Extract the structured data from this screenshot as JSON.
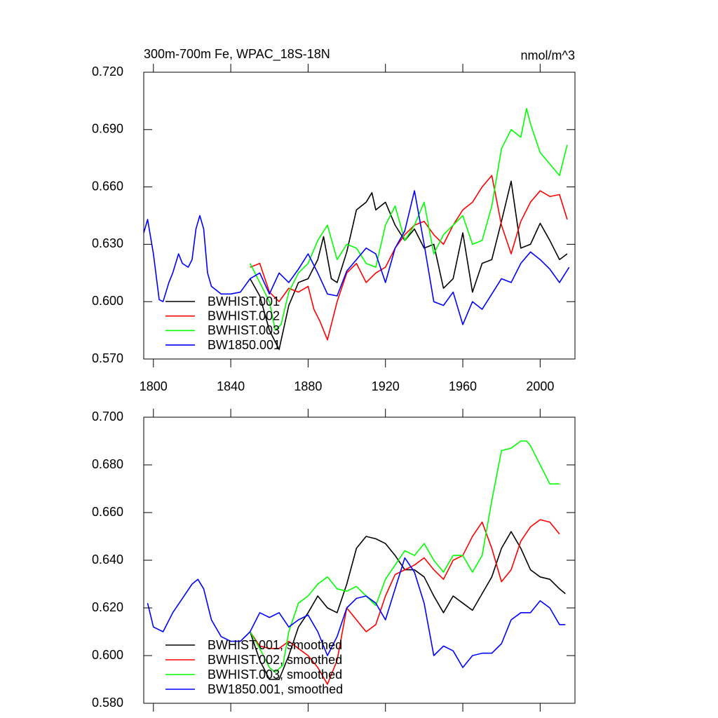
{
  "chart_data": [
    {
      "type": "line",
      "title": "300m-700m Fe, WPAC_18S-18N",
      "units": "nmol/m^3",
      "xlim": [
        1795,
        2018
      ],
      "xticks": [
        1800,
        1840,
        1880,
        1920,
        1960,
        2000
      ],
      "ylim": [
        0.57,
        0.72
      ],
      "yticks": [
        {
          "value": 0.57,
          "label": "0.570"
        },
        {
          "value": 0.6,
          "label": "0.600"
        },
        {
          "value": 0.63,
          "label": "0.630"
        },
        {
          "value": 0.66,
          "label": "0.660"
        },
        {
          "value": 0.69,
          "label": "0.690"
        },
        {
          "value": 0.72,
          "label": "0.720"
        }
      ],
      "legend": "lower left",
      "series": [
        {
          "name": "BWHIST.001",
          "color": "#000000",
          "x": [
            1850,
            1855,
            1860,
            1865,
            1870,
            1875,
            1880,
            1885,
            1888,
            1892,
            1895,
            1900,
            1905,
            1910,
            1913,
            1915,
            1920,
            1925,
            1930,
            1935,
            1940,
            1945,
            1950,
            1955,
            1960,
            1965,
            1970,
            1975,
            1980,
            1985,
            1990,
            1995,
            2000,
            2005,
            2010,
            2014
          ],
          "values": [
            0.612,
            0.603,
            0.585,
            0.575,
            0.598,
            0.61,
            0.612,
            0.622,
            0.634,
            0.612,
            0.61,
            0.626,
            0.648,
            0.652,
            0.657,
            0.648,
            0.652,
            0.64,
            0.632,
            0.638,
            0.628,
            0.63,
            0.607,
            0.612,
            0.636,
            0.605,
            0.62,
            0.622,
            0.642,
            0.663,
            0.628,
            0.63,
            0.641,
            0.632,
            0.622,
            0.625
          ]
        },
        {
          "name": "BWHIST.002",
          "color": "#ff0000",
          "x": [
            1850,
            1855,
            1860,
            1865,
            1870,
            1875,
            1880,
            1883,
            1886,
            1890,
            1895,
            1900,
            1905,
            1910,
            1915,
            1920,
            1925,
            1930,
            1935,
            1940,
            1945,
            1950,
            1955,
            1960,
            1965,
            1970,
            1975,
            1980,
            1985,
            1990,
            1995,
            2000,
            2005,
            2010,
            2014
          ],
          "values": [
            0.618,
            0.62,
            0.605,
            0.6,
            0.607,
            0.605,
            0.608,
            0.596,
            0.59,
            0.58,
            0.6,
            0.615,
            0.62,
            0.61,
            0.615,
            0.618,
            0.628,
            0.635,
            0.64,
            0.642,
            0.635,
            0.63,
            0.64,
            0.648,
            0.652,
            0.66,
            0.666,
            0.64,
            0.625,
            0.642,
            0.652,
            0.658,
            0.655,
            0.656,
            0.643
          ]
        },
        {
          "name": "BWHIST.003",
          "color": "#00ff00",
          "x": [
            1850,
            1855,
            1860,
            1863,
            1866,
            1870,
            1875,
            1880,
            1885,
            1890,
            1895,
            1900,
            1905,
            1910,
            1915,
            1920,
            1925,
            1930,
            1935,
            1940,
            1945,
            1950,
            1955,
            1960,
            1965,
            1970,
            1975,
            1980,
            1985,
            1990,
            1993,
            1995,
            2000,
            2005,
            2010,
            2014
          ],
          "values": [
            0.62,
            0.61,
            0.6,
            0.585,
            0.588,
            0.605,
            0.615,
            0.62,
            0.632,
            0.64,
            0.622,
            0.63,
            0.628,
            0.62,
            0.618,
            0.64,
            0.65,
            0.632,
            0.64,
            0.652,
            0.625,
            0.635,
            0.64,
            0.645,
            0.63,
            0.632,
            0.65,
            0.68,
            0.69,
            0.686,
            0.701,
            0.693,
            0.678,
            0.672,
            0.666,
            0.682
          ]
        },
        {
          "name": "BW1850.001",
          "color": "#0000ff",
          "x": [
            1795,
            1797,
            1800,
            1803,
            1805,
            1808,
            1810,
            1813,
            1815,
            1818,
            1820,
            1822,
            1824,
            1826,
            1828,
            1830,
            1835,
            1840,
            1845,
            1850,
            1855,
            1860,
            1865,
            1870,
            1875,
            1880,
            1885,
            1890,
            1895,
            1900,
            1905,
            1910,
            1915,
            1920,
            1925,
            1930,
            1935,
            1940,
            1945,
            1950,
            1955,
            1960,
            1965,
            1970,
            1975,
            1980,
            1985,
            1990,
            1995,
            2000,
            2005,
            2010,
            2015
          ],
          "values": [
            0.636,
            0.643,
            0.625,
            0.601,
            0.6,
            0.61,
            0.615,
            0.625,
            0.62,
            0.618,
            0.622,
            0.638,
            0.645,
            0.638,
            0.615,
            0.608,
            0.604,
            0.604,
            0.605,
            0.612,
            0.615,
            0.604,
            0.615,
            0.61,
            0.617,
            0.625,
            0.615,
            0.604,
            0.603,
            0.616,
            0.622,
            0.628,
            0.625,
            0.61,
            0.628,
            0.637,
            0.658,
            0.63,
            0.6,
            0.598,
            0.605,
            0.588,
            0.6,
            0.596,
            0.604,
            0.612,
            0.61,
            0.62,
            0.626,
            0.622,
            0.617,
            0.61,
            0.618
          ]
        }
      ]
    },
    {
      "type": "line",
      "xlim": [
        1795,
        2018
      ],
      "xticks": [
        1800,
        1840,
        1880,
        1920,
        1960,
        2000
      ],
      "ylim": [
        0.58,
        0.7
      ],
      "yticks": [
        {
          "value": 0.58,
          "label": "0.580"
        },
        {
          "value": 0.6,
          "label": "0.600"
        },
        {
          "value": 0.62,
          "label": "0.620"
        },
        {
          "value": 0.64,
          "label": "0.640"
        },
        {
          "value": 0.66,
          "label": "0.660"
        },
        {
          "value": 0.68,
          "label": "0.680"
        },
        {
          "value": 0.7,
          "label": "0.700"
        }
      ],
      "legend": "lower left",
      "series": [
        {
          "name": "BWHIST.001, smoothed",
          "color": "#000000",
          "x": [
            1850,
            1855,
            1860,
            1865,
            1870,
            1875,
            1880,
            1885,
            1890,
            1895,
            1900,
            1905,
            1910,
            1915,
            1920,
            1925,
            1930,
            1935,
            1940,
            1945,
            1950,
            1955,
            1960,
            1965,
            1970,
            1975,
            1980,
            1985,
            1990,
            1995,
            2000,
            2005,
            2010,
            2013
          ],
          "values": [
            0.61,
            0.598,
            0.59,
            0.59,
            0.6,
            0.612,
            0.618,
            0.625,
            0.62,
            0.618,
            0.63,
            0.645,
            0.65,
            0.649,
            0.647,
            0.642,
            0.636,
            0.636,
            0.633,
            0.625,
            0.618,
            0.625,
            0.622,
            0.619,
            0.626,
            0.633,
            0.645,
            0.652,
            0.645,
            0.636,
            0.633,
            0.632,
            0.628,
            0.626
          ]
        },
        {
          "name": "BWHIST.002, smoothed",
          "color": "#ff0000",
          "x": [
            1850,
            1855,
            1860,
            1865,
            1870,
            1875,
            1880,
            1885,
            1890,
            1895,
            1900,
            1905,
            1910,
            1915,
            1920,
            1925,
            1930,
            1935,
            1940,
            1945,
            1950,
            1955,
            1960,
            1965,
            1970,
            1975,
            1980,
            1985,
            1990,
            1995,
            2000,
            2005,
            2010
          ],
          "values": [
            0.61,
            0.604,
            0.603,
            0.603,
            0.606,
            0.603,
            0.6,
            0.595,
            0.588,
            0.598,
            0.62,
            0.615,
            0.61,
            0.613,
            0.625,
            0.634,
            0.636,
            0.638,
            0.641,
            0.636,
            0.632,
            0.64,
            0.642,
            0.65,
            0.656,
            0.645,
            0.631,
            0.636,
            0.648,
            0.654,
            0.657,
            0.656,
            0.651
          ]
        },
        {
          "name": "BWHIST.003, smoothed",
          "color": "#00ff00",
          "x": [
            1850,
            1855,
            1860,
            1863,
            1867,
            1870,
            1875,
            1880,
            1885,
            1890,
            1895,
            1900,
            1905,
            1910,
            1915,
            1920,
            1925,
            1930,
            1935,
            1940,
            1945,
            1950,
            1955,
            1960,
            1965,
            1970,
            1975,
            1980,
            1985,
            1990,
            1993,
            1995,
            2000,
            2005,
            2010
          ],
          "values": [
            0.61,
            0.603,
            0.595,
            0.593,
            0.596,
            0.61,
            0.622,
            0.625,
            0.63,
            0.633,
            0.628,
            0.627,
            0.629,
            0.625,
            0.621,
            0.632,
            0.638,
            0.644,
            0.642,
            0.647,
            0.64,
            0.635,
            0.642,
            0.642,
            0.635,
            0.642,
            0.665,
            0.686,
            0.687,
            0.69,
            0.69,
            0.688,
            0.68,
            0.672,
            0.672
          ]
        },
        {
          "name": "BW1850.001, smoothed",
          "color": "#0000ff",
          "x": [
            1797,
            1800,
            1805,
            1810,
            1815,
            1820,
            1823,
            1826,
            1830,
            1835,
            1840,
            1845,
            1850,
            1855,
            1860,
            1865,
            1870,
            1875,
            1880,
            1885,
            1890,
            1895,
            1900,
            1905,
            1910,
            1915,
            1920,
            1925,
            1930,
            1935,
            1940,
            1945,
            1950,
            1955,
            1960,
            1965,
            1970,
            1975,
            1980,
            1985,
            1990,
            1995,
            2000,
            2005,
            2010,
            2013
          ],
          "values": [
            0.622,
            0.612,
            0.61,
            0.618,
            0.624,
            0.63,
            0.632,
            0.628,
            0.615,
            0.608,
            0.606,
            0.606,
            0.61,
            0.618,
            0.616,
            0.618,
            0.612,
            0.615,
            0.617,
            0.61,
            0.6,
            0.608,
            0.62,
            0.624,
            0.625,
            0.622,
            0.615,
            0.628,
            0.641,
            0.635,
            0.622,
            0.6,
            0.604,
            0.602,
            0.595,
            0.6,
            0.601,
            0.601,
            0.605,
            0.615,
            0.618,
            0.618,
            0.623,
            0.62,
            0.613,
            0.613
          ]
        }
      ]
    }
  ]
}
